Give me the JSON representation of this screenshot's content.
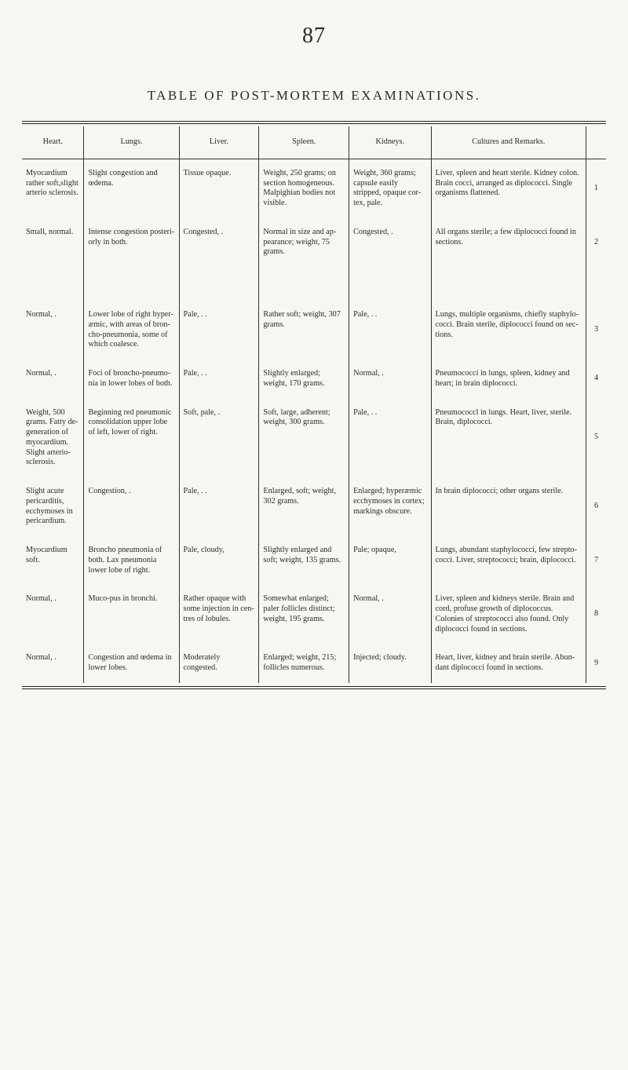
{
  "page_number": "87",
  "title": "TABLE OF POST-MORTEM EXAMINATIONS.",
  "columns": {
    "heart": "Heart.",
    "lungs": "Lungs.",
    "liver": "Liver.",
    "spleen": "Spleen.",
    "kidneys": "Kidneys.",
    "cultures": "Cultures and Remarks."
  },
  "rows": [
    {
      "heart": "Myocardi­um rather soft,slight arterio sclerosis.",
      "lungs": "Slight conges­tion and œde­ma.",
      "liver": "Tissue opaque.",
      "spleen": "Weight, 250 grams; on section ho­mogeneous. Malpighian bodies not visible.",
      "kidneys": "Weight, 360 grams; cap­sule easily stripped, opaque cor­tex, pale.",
      "cultures": "Liver, spleen and heart sterile. Kidney colon. Brain cocci, arranged as diplococci. Single or­ganisms flattened.",
      "num": "1"
    },
    {
      "heart": "Small, nor­mal.",
      "lungs": "Intense conges­tion posteri­orly in both.",
      "liver": "Congested, .",
      "spleen": "Normal in size and ap­pearance; weight, 75 grams.",
      "kidneys": "Congested, .",
      "cultures": "All organs sterile; a few diplococci found in sections.",
      "num": "2"
    },
    {
      "heart": "Normal,  .",
      "lungs": "Lower lobe of right hyper­æmic, with areas of bron­cho-pneumo­nia, some of which coa­lesce.",
      "liver": "Pale,  .  .",
      "spleen": "Rather soft; weight, 307 grams.",
      "kidneys": "Pale,  .  .",
      "cultures": "Lungs, multiple organ­isms, chiefly staphylo­cocci. Brain sterile, diplococci found on sec­tions.",
      "num": "3",
      "big_gap": true
    },
    {
      "heart": "Normal,  .",
      "lungs": "Foci of bron­cho-pneumo­nia in lower lobes of both.",
      "liver": "Pale,  .  .",
      "spleen": "Slightly en­larged; weight, 170 grams.",
      "kidneys": "Normal,  .",
      "cultures": "Pneumococci in lungs, spleen, kidney and heart; in brain diplo­cocci.",
      "num": "4"
    },
    {
      "heart": "Weight, 500 grams. Fatty de­generation of myo­cardium. Slight ar­terio-scle­rosis.",
      "lungs": "Beginning red pneumonic consolidation upper lobe of left, lower of right.",
      "liver": "Soft, pale, .",
      "spleen": "Soft, large, adherent; weight, 300 grams.",
      "kidneys": "Pale,  .  .",
      "cultures": "Pneumococcl in lungs. Heart, liver, sterile. Brain, diplococci.",
      "num": "5"
    },
    {
      "heart": "Slight acute pericardi­tis, ecchy­moses in pericar­dium.",
      "lungs": "Congestion,  .",
      "liver": "Pale,  .  .",
      "spleen": "Enlarged, soft; weight, 302 grams.",
      "kidneys": "Enlarged; hyperæmic ecchymoses in cortex; markings obscure.",
      "cultures": "In brain diplococci; other organs sterile.",
      "num": "6"
    },
    {
      "heart": "Myocardi­um soft.",
      "lungs": "Broncho pneu­monia of both. Lax pneumo­nia lower lobe of right.",
      "liver": "Pale, cloudy,",
      "spleen": "Slightly en­larged and soft; weight, 135 grams.",
      "kidneys": "Pale; opaque,",
      "cultures": "Lungs, abundant staphy­lococci, few strepto­cocci. Liver, strepto­cocci; brain, diplococci.",
      "num": "7"
    },
    {
      "heart": "Normal,  .",
      "lungs": "Muco-pus in bronchi.",
      "liver": "Rather opaque with some injec­tion in cen­tres of lob­ules.",
      "spleen": "Somewhat en­larged; paler follicles dis­tinct; weight, 195 grams.",
      "kidneys": "Normal,  .",
      "cultures": "Liver, spleen and kid­neys sterile. Brain and cord, profuse growth of diplococcus. Colonies of streptococci also found. Only diplococci found in sections.",
      "num": "8"
    },
    {
      "heart": "Normal,  .",
      "lungs": "Congestion and œdema in lower lobes.",
      "liver": "Moderately congested.",
      "spleen": "Enlarged; weight, 215; follicles nu­merous.",
      "kidneys": "Injected; cloudy.",
      "cultures": "Heart, liver, kidney and brain sterile. Abun­dant diplococci found in sections.",
      "num": "9"
    }
  ]
}
